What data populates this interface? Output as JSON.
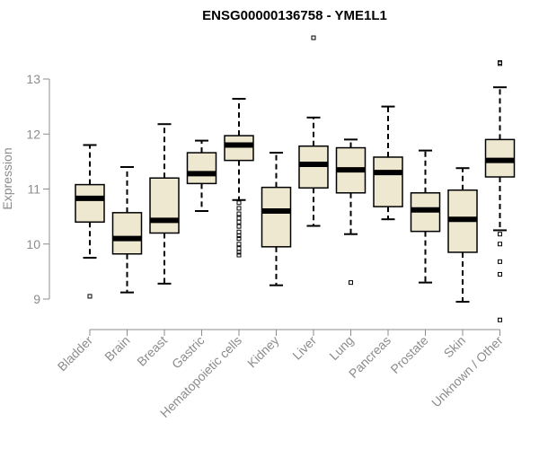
{
  "chart_data": {
    "type": "box",
    "title": "ENSG00000136758 - YME1L1",
    "ylabel": "Expression",
    "xlabel": "",
    "ylim": [
      8.45,
      13.75
    ],
    "yticks": [
      9,
      10,
      11,
      12,
      13
    ],
    "grid": false,
    "colors": {
      "box_fill": "#eee8d0",
      "stroke": "#000000",
      "axis": "#8c8c8c"
    },
    "categories": [
      "Bladder",
      "Brain",
      "Breast",
      "Gastric",
      "Hematopoietic cells",
      "Kidney",
      "Liver",
      "Lung",
      "Pancreas",
      "Prostate",
      "Skin",
      "Unknown / Other"
    ],
    "boxes": [
      {
        "low": 9.75,
        "q1": 10.4,
        "median": 10.83,
        "q3": 11.08,
        "high": 11.8,
        "outliers": [
          9.05
        ]
      },
      {
        "low": 9.12,
        "q1": 9.82,
        "median": 10.1,
        "q3": 10.57,
        "high": 11.4,
        "outliers": []
      },
      {
        "low": 9.28,
        "q1": 10.2,
        "median": 10.43,
        "q3": 11.2,
        "high": 12.18,
        "outliers": []
      },
      {
        "low": 10.6,
        "q1": 11.1,
        "median": 11.28,
        "q3": 11.66,
        "high": 11.88,
        "outliers": []
      },
      {
        "low": 10.8,
        "q1": 11.52,
        "median": 11.8,
        "q3": 11.97,
        "high": 12.64,
        "outliers": [
          10.75,
          10.65,
          10.55,
          10.47,
          10.4,
          10.32,
          10.22,
          10.15,
          10.1,
          10.0,
          9.92,
          9.85,
          9.8
        ]
      },
      {
        "low": 9.25,
        "q1": 9.95,
        "median": 10.6,
        "q3": 11.03,
        "high": 11.66,
        "outliers": []
      },
      {
        "low": 10.33,
        "q1": 11.02,
        "median": 11.45,
        "q3": 11.78,
        "high": 12.3,
        "outliers": [
          13.75
        ]
      },
      {
        "low": 10.18,
        "q1": 10.93,
        "median": 11.35,
        "q3": 11.75,
        "high": 11.9,
        "outliers": [
          9.3
        ]
      },
      {
        "low": 10.45,
        "q1": 10.68,
        "median": 11.3,
        "q3": 11.58,
        "high": 12.5,
        "outliers": []
      },
      {
        "low": 9.3,
        "q1": 10.23,
        "median": 10.62,
        "q3": 10.93,
        "high": 11.7,
        "outliers": []
      },
      {
        "low": 8.95,
        "q1": 9.85,
        "median": 10.45,
        "q3": 10.98,
        "high": 11.38,
        "outliers": []
      },
      {
        "low": 10.25,
        "q1": 11.22,
        "median": 11.52,
        "q3": 11.9,
        "high": 12.85,
        "outliers": [
          13.3,
          13.28,
          10.18,
          10.0,
          9.68,
          9.45,
          8.62
        ]
      }
    ]
  }
}
